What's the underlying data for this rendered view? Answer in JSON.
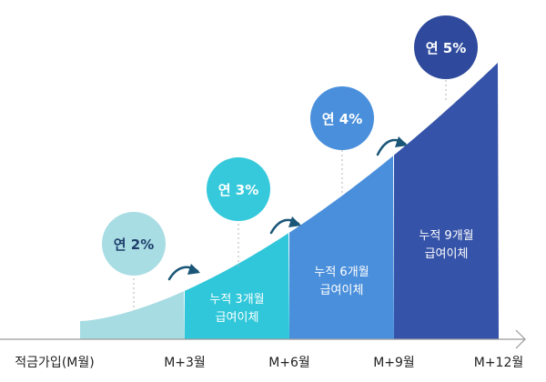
{
  "x_axis": {
    "labels": [
      "적금가입(M월)",
      "M+3월",
      "M+6월",
      "M+9월",
      "M+12월"
    ]
  },
  "segments": [
    {
      "line1": "",
      "line2": "",
      "color": "#a7dce3"
    },
    {
      "line1": "누적 3개월",
      "line2": "급여이체",
      "color": "#2fc7d9"
    },
    {
      "line1": "누적 6개월",
      "line2": "급여이체",
      "color": "#4a8fdb"
    },
    {
      "line1": "누적 9개월",
      "line2": "급여이체",
      "color": "#3553a8"
    }
  ],
  "rates": [
    {
      "label": "연 2%",
      "bg": "#a9dde4",
      "fg": "#1e3f6b"
    },
    {
      "label": "연 3%",
      "bg": "#35c9db",
      "fg": "#ffffff"
    },
    {
      "label": "연 4%",
      "bg": "#4a8fdb",
      "fg": "#ffffff"
    },
    {
      "label": "연 5%",
      "bg": "#2f4a9c",
      "fg": "#ffffff"
    }
  ],
  "colors": {
    "arrow": "#1a5677",
    "axis": "#9a9a9a",
    "dotted": "#b5b5b5"
  }
}
